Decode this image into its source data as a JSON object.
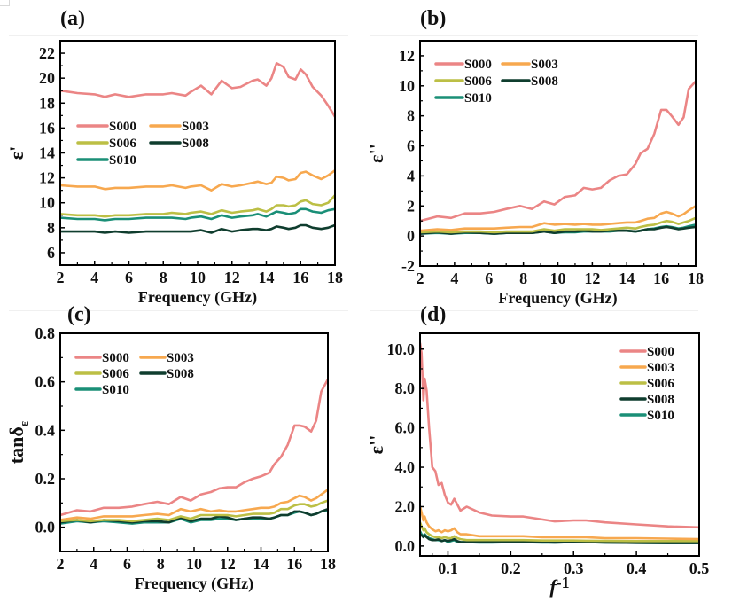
{
  "figure": {
    "series_names": [
      "S000",
      "S003",
      "S006",
      "S008",
      "S010"
    ],
    "colors": {
      "S000": "#EB8585",
      "S003": "#F7A84F",
      "S006": "#BCBF45",
      "S008": "#0F3D2E",
      "S010": "#1A8F77"
    }
  },
  "chart_data": [
    {
      "panel": "(a)",
      "type": "line",
      "title": "",
      "xlabel": "Frequency (GHz)",
      "ylabel": "ε'",
      "xlim": [
        2,
        18
      ],
      "ylim": [
        5,
        23
      ],
      "xticks": [
        2,
        4,
        6,
        8,
        10,
        12,
        14,
        16,
        18
      ],
      "yticks": [
        6,
        8,
        10,
        12,
        14,
        16,
        18,
        20,
        22
      ],
      "legend": "upper-left, 2 columns",
      "x": [
        2,
        3,
        4,
        4.6,
        5.2,
        6,
        7,
        8,
        8.5,
        9.3,
        9.6,
        10.2,
        10.8,
        11.4,
        12,
        12.5,
        13.2,
        13.5,
        14,
        14.3,
        14.6,
        15,
        15.3,
        15.7,
        16,
        16.3,
        16.7,
        17.2,
        17.6,
        18
      ],
      "series": [
        {
          "name": "S000",
          "values": [
            19.0,
            18.8,
            18.7,
            18.5,
            18.7,
            18.5,
            18.7,
            18.7,
            18.8,
            18.6,
            18.9,
            19.4,
            18.7,
            19.8,
            19.2,
            19.3,
            19.8,
            19.9,
            19.4,
            20.0,
            21.2,
            20.9,
            20.1,
            19.9,
            20.7,
            20.3,
            19.3,
            18.6,
            17.8,
            16.9
          ]
        },
        {
          "name": "S003",
          "values": [
            11.4,
            11.3,
            11.3,
            11.1,
            11.2,
            11.2,
            11.3,
            11.3,
            11.4,
            11.2,
            11.3,
            11.4,
            11.0,
            11.5,
            11.3,
            11.4,
            11.6,
            11.7,
            11.5,
            11.6,
            12.1,
            12.0,
            11.8,
            11.9,
            12.4,
            12.5,
            12.2,
            11.9,
            12.2,
            12.6
          ]
        },
        {
          "name": "S006",
          "values": [
            9.1,
            9.0,
            9.0,
            8.9,
            9.0,
            9.0,
            9.1,
            9.1,
            9.2,
            9.1,
            9.2,
            9.3,
            9.1,
            9.4,
            9.2,
            9.3,
            9.4,
            9.5,
            9.3,
            9.5,
            9.8,
            9.8,
            9.7,
            9.8,
            10.1,
            10.2,
            9.9,
            9.8,
            10.0,
            10.6
          ]
        },
        {
          "name": "S008",
          "values": [
            7.7,
            7.7,
            7.7,
            7.6,
            7.7,
            7.6,
            7.7,
            7.7,
            7.7,
            7.7,
            7.7,
            7.8,
            7.6,
            7.9,
            7.7,
            7.8,
            7.9,
            7.9,
            7.8,
            7.9,
            8.1,
            8.0,
            7.9,
            8.0,
            8.2,
            8.2,
            8.0,
            7.9,
            8.0,
            8.2
          ]
        },
        {
          "name": "S010",
          "values": [
            8.8,
            8.7,
            8.7,
            8.6,
            8.7,
            8.7,
            8.8,
            8.8,
            8.8,
            8.7,
            8.8,
            8.9,
            8.7,
            9.0,
            8.8,
            8.9,
            9.0,
            9.1,
            8.9,
            9.1,
            9.3,
            9.2,
            9.1,
            9.2,
            9.5,
            9.5,
            9.3,
            9.2,
            9.4,
            9.5
          ]
        }
      ]
    },
    {
      "panel": "(b)",
      "type": "line",
      "title": "",
      "xlabel": "Frequency (GHz)",
      "ylabel": "ε''",
      "xlim": [
        2,
        18
      ],
      "ylim": [
        -2,
        13
      ],
      "xticks": [
        2,
        4,
        6,
        8,
        10,
        12,
        14,
        16,
        18
      ],
      "yticks": [
        -2,
        0,
        2,
        4,
        6,
        8,
        10,
        12
      ],
      "legend": "upper-left, 2 columns",
      "x": [
        2,
        3,
        3.8,
        4.6,
        5.5,
        6.3,
        7,
        7.8,
        8.5,
        9.2,
        9.8,
        10.4,
        11,
        11.5,
        12,
        12.5,
        13,
        13.5,
        14,
        14.5,
        14.8,
        15.2,
        15.6,
        16,
        16.3,
        16.6,
        17,
        17.3,
        17.6,
        18
      ],
      "series": [
        {
          "name": "S000",
          "values": [
            1.0,
            1.3,
            1.2,
            1.5,
            1.5,
            1.6,
            1.8,
            2.0,
            1.8,
            2.3,
            2.1,
            2.6,
            2.7,
            3.2,
            3.1,
            3.2,
            3.7,
            4.0,
            4.1,
            4.8,
            5.5,
            5.8,
            6.8,
            8.4,
            8.4,
            8.0,
            7.4,
            7.9,
            9.8,
            10.3
          ]
        },
        {
          "name": "S003",
          "values": [
            0.35,
            0.45,
            0.4,
            0.5,
            0.5,
            0.5,
            0.55,
            0.6,
            0.6,
            0.85,
            0.75,
            0.8,
            0.75,
            0.8,
            0.75,
            0.75,
            0.8,
            0.85,
            0.9,
            0.9,
            1.0,
            1.15,
            1.2,
            1.5,
            1.6,
            1.5,
            1.3,
            1.45,
            1.7,
            2.0
          ]
        },
        {
          "name": "S006",
          "values": [
            0.25,
            0.3,
            0.25,
            0.3,
            0.3,
            0.25,
            0.3,
            0.3,
            0.3,
            0.45,
            0.35,
            0.45,
            0.45,
            0.45,
            0.45,
            0.4,
            0.45,
            0.5,
            0.55,
            0.5,
            0.6,
            0.7,
            0.75,
            0.9,
            1.0,
            0.95,
            0.8,
            0.9,
            1.0,
            1.2
          ]
        },
        {
          "name": "S008",
          "values": [
            0.15,
            0.25,
            0.15,
            0.25,
            0.2,
            0.15,
            0.2,
            0.2,
            0.2,
            0.3,
            0.2,
            0.3,
            0.3,
            0.35,
            0.3,
            0.3,
            0.35,
            0.35,
            0.35,
            0.3,
            0.35,
            0.45,
            0.45,
            0.55,
            0.6,
            0.55,
            0.45,
            0.5,
            0.55,
            0.6
          ]
        },
        {
          "name": "S010",
          "values": [
            0.15,
            0.2,
            0.15,
            0.2,
            0.2,
            0.15,
            0.2,
            0.2,
            0.2,
            0.3,
            0.2,
            0.25,
            0.25,
            0.3,
            0.3,
            0.3,
            0.3,
            0.35,
            0.35,
            0.3,
            0.35,
            0.45,
            0.5,
            0.6,
            0.65,
            0.6,
            0.5,
            0.55,
            0.65,
            0.75
          ]
        }
      ]
    },
    {
      "panel": "(c)",
      "type": "line",
      "title": "",
      "xlabel": "Frequency (GHz)",
      "ylabel": "tanδε",
      "xlim": [
        2,
        18
      ],
      "ylim": [
        -0.1,
        0.8
      ],
      "xticks": [
        2,
        4,
        6,
        8,
        10,
        12,
        14,
        16,
        18
      ],
      "yticks": [
        0.0,
        0.2,
        0.4,
        0.6,
        0.8
      ],
      "legend": "upper-left, 2 columns",
      "x": [
        2,
        3,
        3.8,
        4.6,
        5.5,
        6.3,
        7,
        7.8,
        8.5,
        9.2,
        9.8,
        10.4,
        11,
        11.5,
        12,
        12.5,
        13,
        13.5,
        14,
        14.5,
        14.8,
        15.2,
        15.6,
        16,
        16.3,
        16.6,
        17,
        17.3,
        17.6,
        18
      ],
      "series": [
        {
          "name": "S000",
          "values": [
            0.05,
            0.07,
            0.065,
            0.08,
            0.08,
            0.085,
            0.095,
            0.105,
            0.095,
            0.125,
            0.11,
            0.135,
            0.145,
            0.16,
            0.165,
            0.165,
            0.185,
            0.2,
            0.21,
            0.225,
            0.26,
            0.29,
            0.34,
            0.42,
            0.42,
            0.415,
            0.395,
            0.44,
            0.56,
            0.61
          ]
        },
        {
          "name": "S003",
          "values": [
            0.03,
            0.04,
            0.035,
            0.045,
            0.045,
            0.045,
            0.05,
            0.055,
            0.05,
            0.075,
            0.065,
            0.075,
            0.065,
            0.07,
            0.065,
            0.065,
            0.07,
            0.075,
            0.08,
            0.08,
            0.085,
            0.1,
            0.105,
            0.12,
            0.13,
            0.125,
            0.11,
            0.12,
            0.135,
            0.155
          ]
        },
        {
          "name": "S006",
          "values": [
            0.025,
            0.03,
            0.025,
            0.03,
            0.03,
            0.025,
            0.03,
            0.035,
            0.03,
            0.045,
            0.035,
            0.05,
            0.05,
            0.05,
            0.05,
            0.045,
            0.05,
            0.055,
            0.055,
            0.055,
            0.06,
            0.075,
            0.075,
            0.09,
            0.095,
            0.095,
            0.085,
            0.09,
            0.1,
            0.11
          ]
        },
        {
          "name": "S008",
          "values": [
            0.02,
            0.03,
            0.02,
            0.03,
            0.025,
            0.02,
            0.025,
            0.025,
            0.02,
            0.04,
            0.025,
            0.035,
            0.035,
            0.045,
            0.04,
            0.03,
            0.035,
            0.04,
            0.04,
            0.035,
            0.04,
            0.05,
            0.05,
            0.065,
            0.065,
            0.06,
            0.05,
            0.055,
            0.065,
            0.075
          ]
        },
        {
          "name": "S010",
          "values": [
            0.015,
            0.025,
            0.02,
            0.025,
            0.02,
            0.015,
            0.02,
            0.02,
            0.02,
            0.035,
            0.02,
            0.03,
            0.03,
            0.035,
            0.035,
            0.03,
            0.035,
            0.035,
            0.035,
            0.035,
            0.04,
            0.05,
            0.05,
            0.06,
            0.065,
            0.06,
            0.05,
            0.055,
            0.065,
            0.07
          ]
        }
      ]
    },
    {
      "panel": "(d)",
      "type": "line",
      "title": "",
      "xlabel": "f-1",
      "ylabel": "ε''",
      "xlim": [
        0.0556,
        0.5
      ],
      "ylim": [
        -0.5,
        10.8
      ],
      "xticks": [
        0.1,
        0.2,
        0.3,
        0.4,
        0.5
      ],
      "yticks": [
        0,
        2,
        4,
        6,
        8,
        10
      ],
      "legend": "upper-right, 1 column",
      "x": [
        0.0556,
        0.058,
        0.061,
        0.063,
        0.066,
        0.07,
        0.075,
        0.08,
        0.085,
        0.09,
        0.095,
        0.1,
        0.105,
        0.11,
        0.115,
        0.12,
        0.13,
        0.15,
        0.17,
        0.2,
        0.22,
        0.25,
        0.27,
        0.3,
        0.32,
        0.35,
        0.4,
        0.45,
        0.5
      ],
      "series": [
        {
          "name": "S000",
          "values": [
            10.3,
            9.8,
            7.4,
            8.5,
            7.9,
            6.0,
            4.0,
            3.8,
            3.1,
            3.2,
            2.6,
            2.2,
            2.1,
            2.4,
            2.1,
            1.8,
            2.0,
            1.7,
            1.55,
            1.5,
            1.5,
            1.35,
            1.25,
            1.3,
            1.3,
            1.2,
            1.1,
            1.0,
            0.95
          ]
        },
        {
          "name": "S003",
          "values": [
            2.0,
            1.7,
            1.3,
            1.5,
            1.2,
            1.0,
            0.85,
            0.75,
            0.8,
            0.7,
            0.8,
            0.75,
            0.8,
            0.9,
            0.7,
            0.6,
            0.6,
            0.5,
            0.5,
            0.5,
            0.5,
            0.45,
            0.45,
            0.45,
            0.45,
            0.4,
            0.4,
            0.38,
            0.35
          ]
        },
        {
          "name": "S006",
          "values": [
            1.2,
            1.0,
            0.8,
            0.9,
            0.7,
            0.6,
            0.5,
            0.45,
            0.45,
            0.4,
            0.45,
            0.4,
            0.4,
            0.5,
            0.4,
            0.35,
            0.3,
            0.3,
            0.3,
            0.3,
            0.3,
            0.28,
            0.28,
            0.28,
            0.27,
            0.26,
            0.25,
            0.25,
            0.25
          ]
        },
        {
          "name": "S008",
          "values": [
            0.6,
            0.55,
            0.45,
            0.55,
            0.45,
            0.35,
            0.3,
            0.3,
            0.35,
            0.25,
            0.3,
            0.25,
            0.3,
            0.35,
            0.25,
            0.2,
            0.2,
            0.2,
            0.2,
            0.22,
            0.2,
            0.2,
            0.18,
            0.2,
            0.2,
            0.18,
            0.16,
            0.15,
            0.15
          ]
        },
        {
          "name": "S010",
          "values": [
            0.75,
            0.6,
            0.5,
            0.6,
            0.5,
            0.4,
            0.35,
            0.3,
            0.3,
            0.25,
            0.3,
            0.2,
            0.25,
            0.3,
            0.2,
            0.2,
            0.2,
            0.18,
            0.18,
            0.2,
            0.2,
            0.18,
            0.18,
            0.2,
            0.2,
            0.18,
            0.16,
            0.15,
            0.15
          ]
        }
      ]
    }
  ]
}
